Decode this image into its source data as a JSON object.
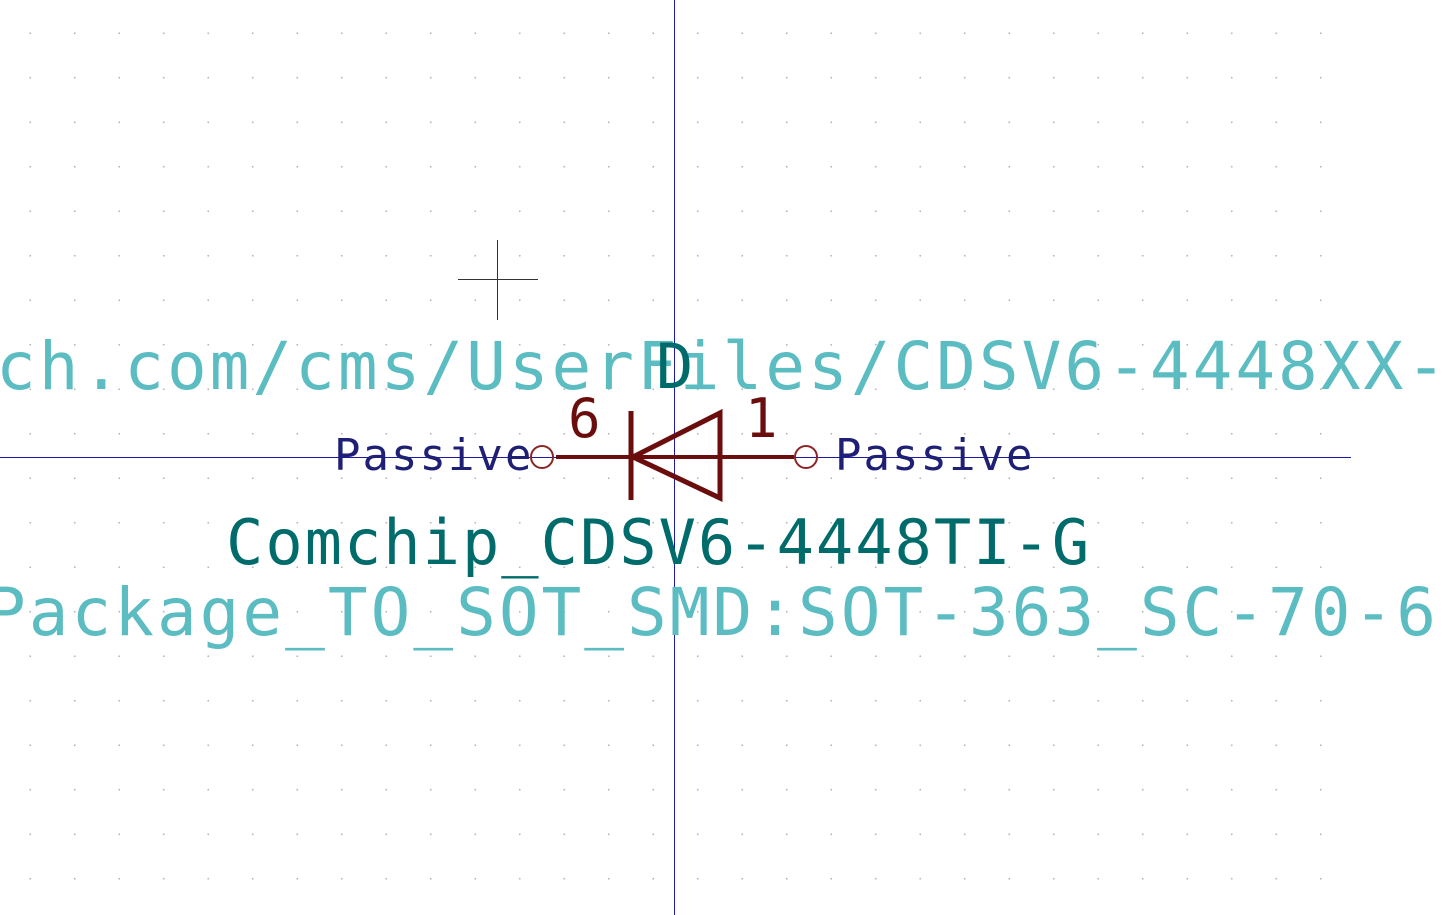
{
  "schematic": {
    "datasheet_url": "ch.com/cms/UserFiles/CDSV6-4448XX-",
    "footprint": "Package_TO_SOT_SMD:SOT-363_SC-70-6",
    "value": "Comchip_CDSV6-4448TI-G",
    "reference": "D",
    "pins": [
      {
        "number": "6",
        "electrical_type": "Passive"
      },
      {
        "number": "1",
        "electrical_type": "Passive"
      }
    ]
  },
  "colors": {
    "background": "#ffffff",
    "axis": "#1a1aa6",
    "field_text": "#5bbcc2",
    "value_reference": "#006b6b",
    "body_pin": "#6b0d0d",
    "pin_type": "#1f1f75"
  },
  "icons": [
    "crosshair-cursor-icon",
    "pin-endpoint-icon"
  ]
}
